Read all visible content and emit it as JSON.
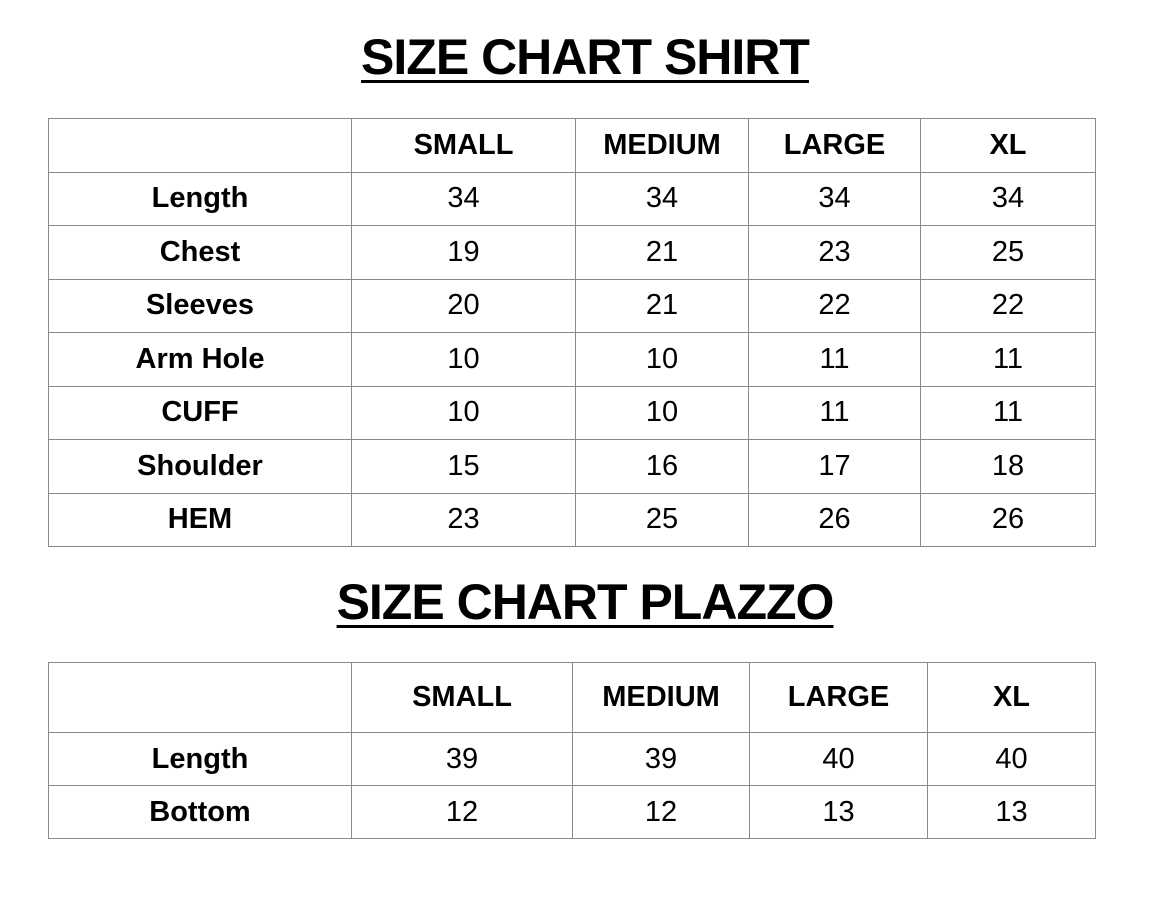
{
  "shirt": {
    "title": "SIZE CHART SHIRT",
    "columns": [
      "",
      "SMALL",
      "MEDIUM",
      "LARGE",
      "XL"
    ],
    "rows": [
      [
        "Length",
        "34",
        "34",
        "34",
        "34"
      ],
      [
        "Chest",
        "19",
        "21",
        "23",
        "25"
      ],
      [
        "Sleeves",
        "20",
        "21",
        "22",
        "22"
      ],
      [
        "Arm Hole",
        "10",
        "10",
        "11",
        "11"
      ],
      [
        "CUFF",
        "10",
        "10",
        "11",
        "11"
      ],
      [
        "Shoulder",
        "15",
        "16",
        "17",
        "18"
      ],
      [
        "HEM",
        "23",
        "25",
        "26",
        "26"
      ]
    ]
  },
  "plazzo": {
    "title": "SIZE CHART PLAZZO",
    "columns": [
      "",
      "SMALL",
      "MEDIUM",
      "LARGE",
      "XL"
    ],
    "rows": [
      [
        "Length",
        "39",
        "39",
        "40",
        "40"
      ],
      [
        "Bottom",
        "12",
        "12",
        "13",
        "13"
      ]
    ]
  }
}
